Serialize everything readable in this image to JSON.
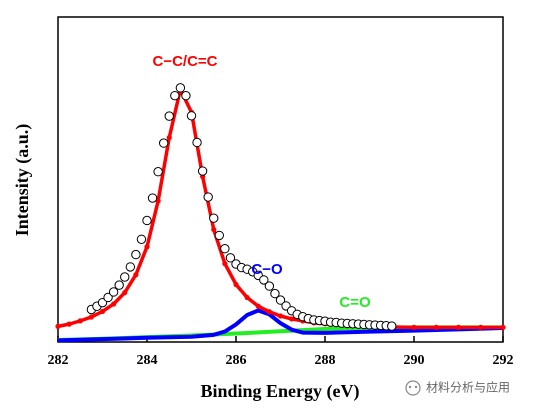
{
  "chart_data": {
    "type": "xps",
    "xlabel": "Binding Energy (eV)",
    "ylabel": "Intensity (a.u.)",
    "xlim": [
      282,
      292
    ],
    "xticks": [
      282,
      284,
      286,
      288,
      290,
      292
    ],
    "ylim": [
      0,
      100
    ],
    "series": [
      {
        "marker": "open-circle",
        "color": "#000000",
        "x": [
          282.75,
          282.875,
          283,
          283.125,
          283.25,
          283.375,
          283.5,
          283.625,
          283.75,
          283.875,
          284,
          284.125,
          284.25,
          284.375,
          284.5,
          284.625,
          284.75,
          284.875,
          285,
          285.125,
          285.25,
          285.375,
          285.5,
          285.625,
          285.75,
          285.875,
          286,
          286.125,
          286.25,
          286.375,
          286.5,
          286.625,
          286.75,
          286.875,
          287,
          287.125,
          287.25,
          287.375,
          287.5,
          287.625,
          287.75,
          287.875,
          288,
          288.125,
          288.25,
          288.375,
          288.5,
          288.625,
          288.75,
          288.875,
          289,
          289.125,
          289.25,
          289.375,
          289.5
        ],
        "values": [
          10.0,
          11.0,
          12.1,
          13.7,
          15.4,
          17.5,
          20.0,
          23.1,
          26.9,
          31.6,
          37.4,
          44.3,
          52.4,
          61.2,
          69.5,
          75.8,
          78.2,
          75.8,
          69.6,
          61.4,
          52.6,
          44.6,
          38.1,
          32.8,
          28.7,
          25.9,
          24.0,
          22.9,
          22.4,
          21.6,
          20.5,
          19.1,
          17.2,
          14.9,
          12.9,
          11.1,
          9.6,
          8.5,
          7.8,
          7.2,
          6.8,
          6.6,
          6.4,
          6.1,
          6.0,
          5.8,
          5.7,
          5.6,
          5.5,
          5.4,
          5.3,
          5.2,
          5.1,
          5.0,
          4.9
        ]
      },
      {
        "marker": "dot-line",
        "color": "#ff0000",
        "x": [
          282,
          282.25,
          282.5,
          282.75,
          283,
          283.25,
          283.5,
          283.75,
          284,
          284.25,
          284.5,
          284.75,
          285,
          285.25,
          285.5,
          285.75,
          286,
          286.25,
          286.5,
          286.75,
          287,
          287.25,
          287.5,
          287.75,
          288,
          288.5,
          289,
          289.5,
          290,
          290.5,
          291,
          291.5,
          292
        ],
        "values": [
          4.8,
          5.5,
          6.5,
          7.7,
          9.4,
          11.7,
          15.2,
          20.7,
          29.3,
          43.4,
          62.9,
          77.7,
          70.7,
          50.9,
          34.6,
          24.1,
          17.7,
          13.7,
          11.0,
          9.3,
          8.0,
          7.1,
          6.5,
          5.9,
          5.6,
          5.0,
          4.8,
          4.6,
          4.5,
          4.5,
          4.5,
          4.5,
          4.5
        ]
      },
      {
        "marker": "line",
        "color": "#0000ff",
        "x": [
          282,
          283,
          284,
          285,
          285.5,
          285.75,
          286,
          286.25,
          286.5,
          286.75,
          287,
          287.25,
          287.5,
          288,
          289,
          290,
          291,
          292
        ],
        "values": [
          0.5,
          0.9,
          1.3,
          1.6,
          2.2,
          3.2,
          5.4,
          8.3,
          9.7,
          8.5,
          5.8,
          3.8,
          2.9,
          2.8,
          3.2,
          3.5,
          3.9,
          4.3
        ]
      },
      {
        "marker": "line",
        "color": "#22ee22",
        "x": [
          282,
          283,
          284,
          285,
          286,
          287,
          288,
          288.5,
          289,
          290,
          291,
          292
        ],
        "values": [
          0.6,
          1.0,
          1.5,
          2.0,
          2.6,
          3.3,
          4.0,
          4.3,
          4.4,
          4.5,
          4.5,
          4.5
        ]
      }
    ],
    "annotations": [
      {
        "text": "C−C/C=C",
        "color": "#ff0000"
      },
      {
        "text": "C−O",
        "color": "#0000ff"
      },
      {
        "text": "C=O",
        "color": "#22ee22"
      }
    ],
    "watermark": "材料分析与应用"
  }
}
